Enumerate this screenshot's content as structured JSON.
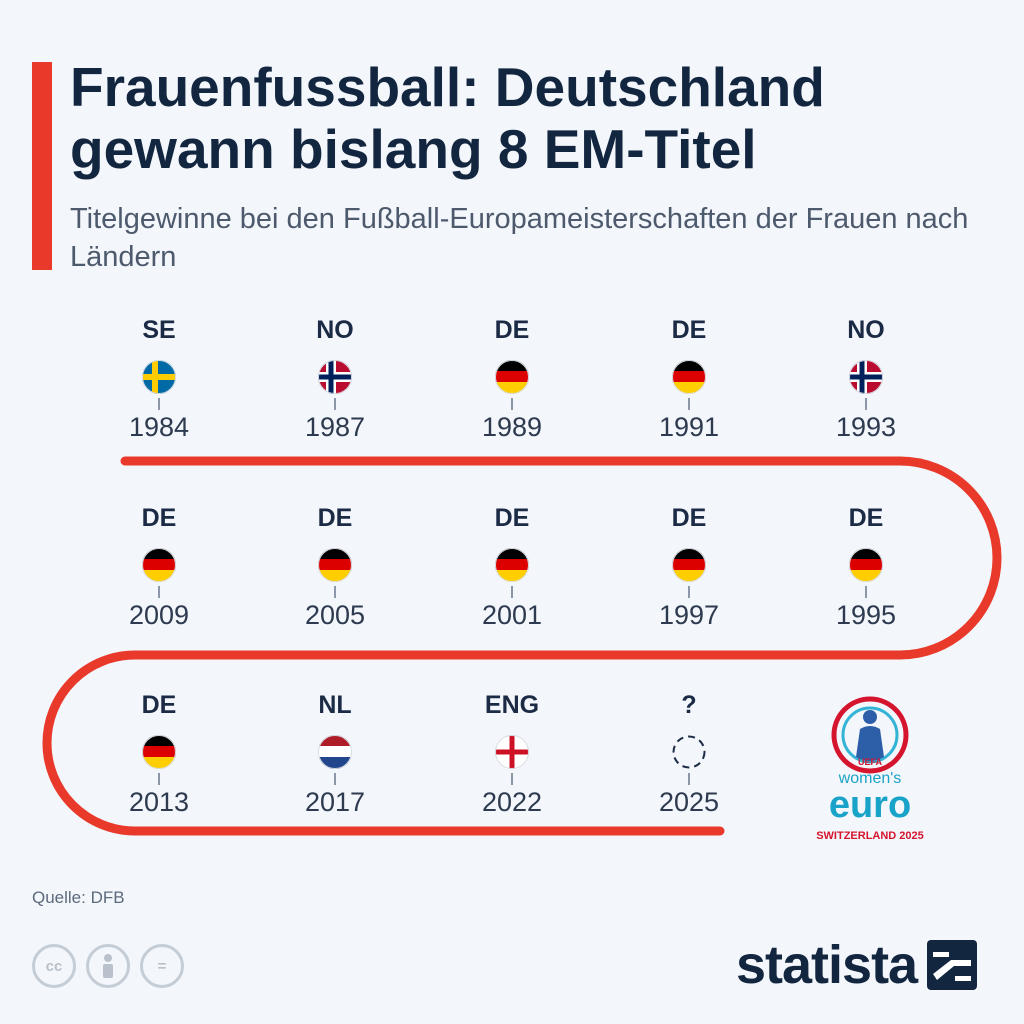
{
  "header": {
    "title": "Frauenfussball: Deutschland gewann bislang 8 EM-Titel",
    "subtitle": "Titelgewinne bei den Fußball-Europameisterschaften der Frauen nach Ländern"
  },
  "timeline": [
    {
      "code": "SE",
      "year": "1984",
      "flag": "sweden"
    },
    {
      "code": "NO",
      "year": "1987",
      "flag": "norway"
    },
    {
      "code": "DE",
      "year": "1989",
      "flag": "germany"
    },
    {
      "code": "DE",
      "year": "1991",
      "flag": "germany"
    },
    {
      "code": "NO",
      "year": "1993",
      "flag": "norway"
    },
    {
      "code": "DE",
      "year": "1995",
      "flag": "germany"
    },
    {
      "code": "DE",
      "year": "1997",
      "flag": "germany"
    },
    {
      "code": "DE",
      "year": "2001",
      "flag": "germany"
    },
    {
      "code": "DE",
      "year": "2005",
      "flag": "germany"
    },
    {
      "code": "DE",
      "year": "2009",
      "flag": "germany"
    },
    {
      "code": "DE",
      "year": "2013",
      "flag": "germany"
    },
    {
      "code": "NL",
      "year": "2017",
      "flag": "netherlands"
    },
    {
      "code": "ENG",
      "year": "2022",
      "flag": "england"
    },
    {
      "code": "?",
      "year": "2025",
      "flag": "unknown"
    }
  ],
  "logo": {
    "uefa": "UEFA",
    "line1": "women's",
    "line2": "euro",
    "line3": "SWITZERLAND 2025"
  },
  "footer": {
    "source": "Quelle: DFB",
    "license_icons": [
      "cc-icon",
      "attribution-icon",
      "no-derivatives-icon"
    ],
    "license_labels": [
      "cc",
      "",
      "="
    ],
    "brand": "statista"
  },
  "colors": {
    "accent": "#e8392a",
    "title": "#132640",
    "background": "#f3f6fa"
  }
}
